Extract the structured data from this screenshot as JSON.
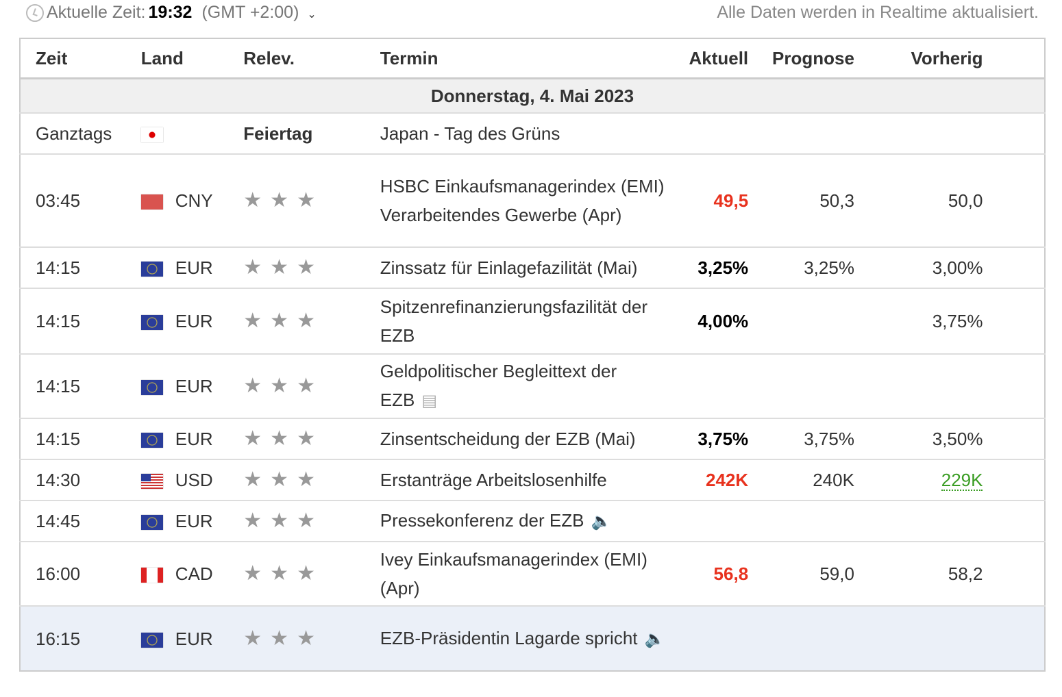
{
  "header": {
    "time_label": "Aktuelle Zeit:",
    "time": "19:32",
    "timezone": "(GMT +2:00)",
    "realtime_note": "Alle Daten werden in Realtime aktualisiert."
  },
  "columns": [
    "Zeit",
    "Land",
    "Relev.",
    "Termin",
    "Aktuell",
    "Prognose",
    "Vorherig"
  ],
  "date": "Donnerstag, 4. Mai 2023",
  "rows": [
    {
      "time": "Ganztags",
      "flag": "jp",
      "currency": "",
      "relev": "Feiertag",
      "event": "Japan - Tag des Grüns",
      "actual": "",
      "forecast": "",
      "previous": ""
    },
    {
      "time": "03:45",
      "flag": "cn",
      "currency": "CNY",
      "stars": 3,
      "event": "HSBC Einkaufsmanagerindex (EMI) Verarbeitendes Gewerbe (Apr)",
      "actual": "49,5",
      "actual_style": "red",
      "forecast": "50,3",
      "previous": "50,0"
    },
    {
      "time": "14:15",
      "flag": "eu",
      "currency": "EUR",
      "stars": 3,
      "event": "Zinssatz für Einlagefazilität (Mai)",
      "actual": "3,25%",
      "actual_style": "bold",
      "forecast": "3,25%",
      "previous": "3,00%"
    },
    {
      "time": "14:15",
      "flag": "eu",
      "currency": "EUR",
      "stars": 3,
      "event": "Spitzenrefinanzierungsfazilität der EZB",
      "actual": "4,00%",
      "actual_style": "bold",
      "forecast": "",
      "previous": "3,75%"
    },
    {
      "time": "14:15",
      "flag": "eu",
      "currency": "EUR",
      "stars": 3,
      "event": "Geldpolitischer Begleittext der EZB",
      "icon": "document-icon",
      "actual": "",
      "forecast": "",
      "previous": ""
    },
    {
      "time": "14:15",
      "flag": "eu",
      "currency": "EUR",
      "stars": 3,
      "event": "Zinsentscheidung der EZB (Mai)",
      "actual": "3,75%",
      "actual_style": "bold",
      "forecast": "3,75%",
      "previous": "3,50%"
    },
    {
      "time": "14:30",
      "flag": "us",
      "currency": "USD",
      "stars": 3,
      "event": "Erstanträge Arbeitslosenhilfe",
      "actual": "242K",
      "actual_style": "red",
      "forecast": "240K",
      "previous": "229K",
      "previous_style": "green"
    },
    {
      "time": "14:45",
      "flag": "eu",
      "currency": "EUR",
      "stars": 3,
      "event": "Pressekonferenz der EZB",
      "icon": "speaker-icon",
      "actual": "",
      "forecast": "",
      "previous": ""
    },
    {
      "time": "16:00",
      "flag": "ca",
      "currency": "CAD",
      "stars": 3,
      "event": "Ivey Einkaufsmanagerindex (EMI) (Apr)",
      "actual": "56,8",
      "actual_style": "red",
      "forecast": "59,0",
      "previous": "58,2"
    },
    {
      "time": "16:15",
      "flag": "eu",
      "currency": "EUR",
      "stars": 3,
      "event": "EZB-Präsidentin Lagarde spricht",
      "icon": "speaker-icon",
      "actual": "",
      "forecast": "",
      "previous": "",
      "highlight": true
    }
  ]
}
